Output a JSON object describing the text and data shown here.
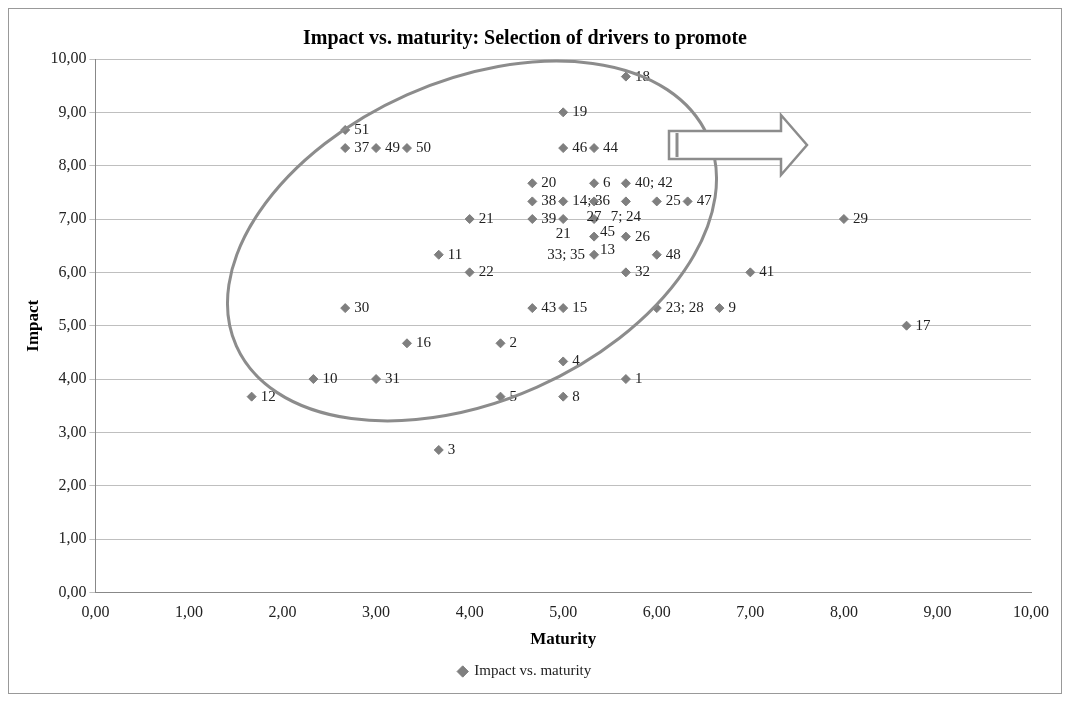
{
  "chart_data": {
    "type": "scatter",
    "title": "Impact vs. maturity: Selection of drivers to promote",
    "xlabel": "Maturity",
    "ylabel": "Impact",
    "xlim": [
      0,
      10
    ],
    "ylim": [
      0,
      10
    ],
    "xticks": [
      {
        "value": 0,
        "label": "0,00"
      },
      {
        "value": 1,
        "label": "1,00"
      },
      {
        "value": 2,
        "label": "2,00"
      },
      {
        "value": 3,
        "label": "3,00"
      },
      {
        "value": 4,
        "label": "4,00"
      },
      {
        "value": 5,
        "label": "5,00"
      },
      {
        "value": 6,
        "label": "6,00"
      },
      {
        "value": 7,
        "label": "7,00"
      },
      {
        "value": 8,
        "label": "8,00"
      },
      {
        "value": 9,
        "label": "9,00"
      },
      {
        "value": 10,
        "label": "10,00"
      }
    ],
    "yticks": [
      {
        "value": 0,
        "label": "0,00"
      },
      {
        "value": 1,
        "label": "1,00"
      },
      {
        "value": 2,
        "label": "2,00"
      },
      {
        "value": 3,
        "label": "3,00"
      },
      {
        "value": 4,
        "label": "4,00"
      },
      {
        "value": 5,
        "label": "5,00"
      },
      {
        "value": 6,
        "label": "6,00"
      },
      {
        "value": 7,
        "label": "7,00"
      },
      {
        "value": 8,
        "label": "8,00"
      },
      {
        "value": 9,
        "label": "9,00"
      },
      {
        "value": 10,
        "label": "10,00"
      }
    ],
    "grid": "y",
    "legend": "bottom",
    "marker": "diamond",
    "series": [
      {
        "name": "Impact vs. maturity",
        "color": "#7f7f7f",
        "x": [
          5.67,
          5.0,
          2.67,
          2.67,
          3.0,
          3.33,
          5.0,
          5.33,
          4.67,
          5.33,
          5.67,
          4.67,
          5.0,
          5.33,
          5.67,
          6.0,
          6.33,
          4.67,
          5.0,
          5.33,
          4.0,
          5.33,
          5.67,
          5.33,
          6.0,
          3.67,
          4.0,
          5.67,
          7.0,
          8.0,
          2.67,
          4.67,
          5.0,
          6.0,
          6.67,
          8.67,
          3.33,
          4.33,
          5.0,
          5.67,
          2.33,
          3.0,
          1.67,
          4.33,
          5.0,
          3.67
        ],
        "values": [
          9.67,
          9.0,
          8.67,
          8.33,
          8.33,
          8.33,
          8.33,
          8.33,
          7.67,
          7.67,
          7.67,
          7.33,
          7.33,
          7.33,
          7.33,
          7.33,
          7.33,
          7.0,
          7.0,
          7.0,
          7.0,
          6.67,
          6.67,
          6.33,
          6.33,
          6.33,
          6.0,
          6.0,
          6.0,
          7.0,
          5.33,
          5.33,
          5.33,
          5.33,
          5.33,
          5.0,
          4.67,
          4.67,
          4.33,
          4.0,
          4.0,
          4.0,
          3.67,
          3.67,
          3.67,
          2.67
        ]
      }
    ],
    "annotations": [
      {
        "text": "18",
        "x": 5.67,
        "y": 9.67
      },
      {
        "text": "19",
        "x": 5.0,
        "y": 9.0
      },
      {
        "text": "51",
        "x": 2.67,
        "y": 8.67
      },
      {
        "text": "37",
        "x": 2.67,
        "y": 8.33
      },
      {
        "text": "49",
        "x": 3.0,
        "y": 8.33
      },
      {
        "text": "50",
        "x": 3.33,
        "y": 8.33
      },
      {
        "text": "46",
        "x": 5.0,
        "y": 8.33
      },
      {
        "text": "44",
        "x": 5.33,
        "y": 8.33
      },
      {
        "text": "20",
        "x": 4.67,
        "y": 7.67
      },
      {
        "text": "6",
        "x": 5.33,
        "y": 7.67
      },
      {
        "text": "40; 42",
        "x": 5.67,
        "y": 7.67
      },
      {
        "text": "38",
        "x": 4.67,
        "y": 7.33
      },
      {
        "text": "14; 36",
        "x": 5.0,
        "y": 7.33
      },
      {
        "text": "27",
        "x": 5.33,
        "y": 7.33
      },
      {
        "text": "7; 24",
        "x": 5.67,
        "y": 7.33
      },
      {
        "text": "25",
        "x": 6.0,
        "y": 7.33
      },
      {
        "text": "47",
        "x": 6.33,
        "y": 7.33
      },
      {
        "text": "39",
        "x": 4.67,
        "y": 7.0
      },
      {
        "text": "21",
        "x": 5.0,
        "y": 7.0
      },
      {
        "text": "45",
        "x": 5.33,
        "y": 7.0
      },
      {
        "text": "21",
        "x": 4.0,
        "y": 7.0
      },
      {
        "text": "13",
        "x": 5.33,
        "y": 6.67
      },
      {
        "text": "26",
        "x": 5.67,
        "y": 6.67
      },
      {
        "text": "33; 35",
        "x": 5.33,
        "y": 6.33
      },
      {
        "text": "48",
        "x": 6.0,
        "y": 6.33
      },
      {
        "text": "11",
        "x": 3.67,
        "y": 6.33
      },
      {
        "text": "22",
        "x": 4.0,
        "y": 6.0
      },
      {
        "text": "32",
        "x": 5.67,
        "y": 6.0
      },
      {
        "text": "41",
        "x": 7.0,
        "y": 6.0
      },
      {
        "text": "29",
        "x": 8.0,
        "y": 7.0
      },
      {
        "text": "30",
        "x": 2.67,
        "y": 5.33
      },
      {
        "text": "43",
        "x": 4.67,
        "y": 5.33
      },
      {
        "text": "15",
        "x": 5.0,
        "y": 5.33
      },
      {
        "text": "23; 28",
        "x": 6.0,
        "y": 5.33
      },
      {
        "text": "9",
        "x": 6.67,
        "y": 5.33
      },
      {
        "text": "17",
        "x": 8.67,
        "y": 5.0
      },
      {
        "text": "16",
        "x": 3.33,
        "y": 4.67
      },
      {
        "text": "2",
        "x": 4.33,
        "y": 4.67
      },
      {
        "text": "4",
        "x": 5.0,
        "y": 4.33
      },
      {
        "text": "1",
        "x": 5.67,
        "y": 4.0
      },
      {
        "text": "10",
        "x": 2.33,
        "y": 4.0
      },
      {
        "text": "31",
        "x": 3.0,
        "y": 4.0
      },
      {
        "text": "12",
        "x": 1.67,
        "y": 3.67
      },
      {
        "text": "5",
        "x": 4.33,
        "y": 3.67
      },
      {
        "text": "8",
        "x": 5.0,
        "y": 3.67
      },
      {
        "text": "3",
        "x": 3.67,
        "y": 2.67
      }
    ]
  }
}
